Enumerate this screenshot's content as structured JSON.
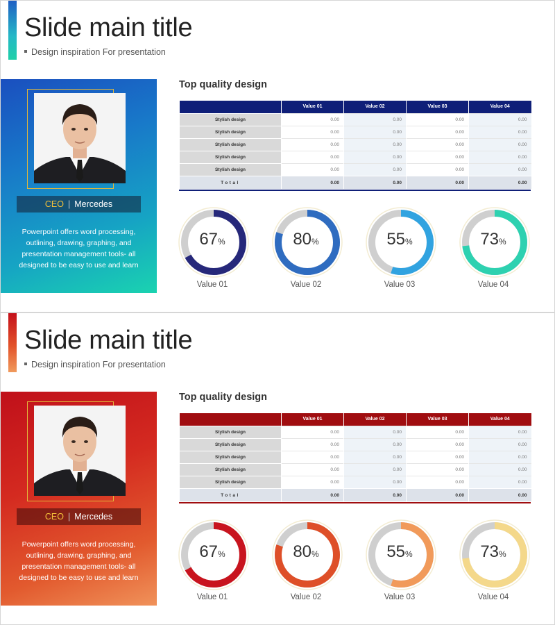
{
  "slides": [
    {
      "title": "Slide main title",
      "subtitle": "Design inspiration For presentation",
      "theme": {
        "accent": "#0f1f78",
        "ring_colors": [
          "#26287a",
          "#2f6cc0",
          "#31a3e0",
          "#2ed1b0"
        ]
      },
      "profile": {
        "role": "CEO",
        "name": "Mercedes",
        "description": "Powerpoint offers word processing, outlining, drawing, graphing, and presentation management tools- all designed to be easy to use and learn"
      },
      "section_title": "Top quality design",
      "table": {
        "headers": [
          "",
          "Value 01",
          "Value 02",
          "Value 03",
          "Value 04"
        ],
        "rows": [
          {
            "label": "Stylish design",
            "values": [
              "0.00",
              "0.00",
              "0.00",
              "0.00"
            ]
          },
          {
            "label": "Stylish design",
            "values": [
              "0.00",
              "0.00",
              "0.00",
              "0.00"
            ]
          },
          {
            "label": "Stylish design",
            "values": [
              "0.00",
              "0.00",
              "0.00",
              "0.00"
            ]
          },
          {
            "label": "Stylish design",
            "values": [
              "0.00",
              "0.00",
              "0.00",
              "0.00"
            ]
          },
          {
            "label": "Stylish design",
            "values": [
              "0.00",
              "0.00",
              "0.00",
              "0.00"
            ]
          }
        ],
        "total": {
          "label": "Total",
          "values": [
            "0.00",
            "0.00",
            "0.00",
            "0.00"
          ]
        }
      },
      "donuts": [
        {
          "value": "67",
          "percent": 67,
          "unit": "%",
          "label": "Value 01"
        },
        {
          "value": "80",
          "percent": 80,
          "unit": "%",
          "label": "Value 02"
        },
        {
          "value": "55",
          "percent": 55,
          "unit": "%",
          "label": "Value 03"
        },
        {
          "value": "73",
          "percent": 73,
          "unit": "%",
          "label": "Value 04"
        }
      ]
    },
    {
      "title": "Slide main title",
      "subtitle": "Design inspiration For presentation",
      "theme": {
        "accent": "#a00d10",
        "ring_colors": [
          "#c8141e",
          "#de4f28",
          "#f19a5a",
          "#f4d88a"
        ]
      },
      "profile": {
        "role": "CEO",
        "name": "Mercedes",
        "description": "Powerpoint offers word processing, outlining, drawing, graphing, and presentation management tools- all designed to be easy to use and learn"
      },
      "section_title": "Top quality design",
      "table": {
        "headers": [
          "",
          "Value 01",
          "Value 02",
          "Value 03",
          "Value 04"
        ],
        "rows": [
          {
            "label": "Stylish design",
            "values": [
              "0.00",
              "0.00",
              "0.00",
              "0.00"
            ]
          },
          {
            "label": "Stylish design",
            "values": [
              "0.00",
              "0.00",
              "0.00",
              "0.00"
            ]
          },
          {
            "label": "Stylish design",
            "values": [
              "0.00",
              "0.00",
              "0.00",
              "0.00"
            ]
          },
          {
            "label": "Stylish design",
            "values": [
              "0.00",
              "0.00",
              "0.00",
              "0.00"
            ]
          },
          {
            "label": "Stylish design",
            "values": [
              "0.00",
              "0.00",
              "0.00",
              "0.00"
            ]
          }
        ],
        "total": {
          "label": "Total",
          "values": [
            "0.00",
            "0.00",
            "0.00",
            "0.00"
          ]
        }
      },
      "donuts": [
        {
          "value": "67",
          "percent": 67,
          "unit": "%",
          "label": "Value 01"
        },
        {
          "value": "80",
          "percent": 80,
          "unit": "%",
          "label": "Value 02"
        },
        {
          "value": "55",
          "percent": 55,
          "unit": "%",
          "label": "Value 03"
        },
        {
          "value": "73",
          "percent": 73,
          "unit": "%",
          "label": "Value 04"
        }
      ]
    }
  ]
}
